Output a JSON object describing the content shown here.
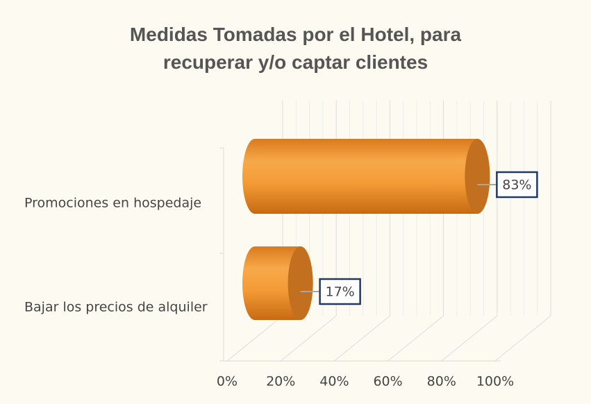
{
  "chart_data": {
    "type": "bar3d-cylinder-horizontal",
    "title": "Medidas Tomadas por el Hotel, para recuperar y/o captar clientes",
    "categories": [
      "Promociones en  hospedaje",
      "Bajar los precios de alquiler"
    ],
    "values": [
      83,
      17
    ],
    "value_labels": [
      "83%",
      "17%"
    ],
    "color": "#f0922e",
    "xlim": [
      0,
      100
    ],
    "xticks": [
      {
        "value": 0,
        "label": "0%"
      },
      {
        "value": 20,
        "label": "20%"
      },
      {
        "value": 40,
        "label": "40%"
      },
      {
        "value": 60,
        "label": "60%"
      },
      {
        "value": 80,
        "label": "80%"
      },
      {
        "value": 100,
        "label": "100%"
      }
    ],
    "grid": true
  }
}
